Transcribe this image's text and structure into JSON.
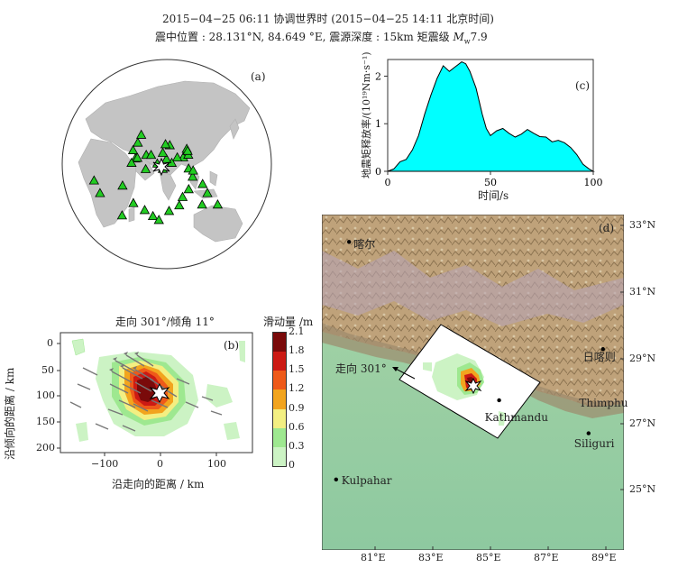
{
  "header": {
    "line1": "2015−04−25 06:11   协调世界时     (2015−04−25 14:11   北京时间)",
    "line2_prefix": "震中位置 : 28.131°N, 84.649 °E,     震源深度 : 15km   矩震级 ",
    "magnitude_symbol": "M",
    "magnitude_sub": "w",
    "magnitude_value": "7.9"
  },
  "panel_a": {
    "label": "(a)",
    "station_marker_color": "#22cc22",
    "epicenter_icon": "star-burst-icon",
    "stations": [
      [
        -48,
        16
      ],
      [
        -27,
        -8
      ],
      [
        -18,
        -16
      ],
      [
        -10,
        27
      ],
      [
        -31,
        42
      ],
      [
        -40,
        58
      ],
      [
        -49,
        70
      ],
      [
        -55,
        80
      ],
      [
        -41,
        97
      ],
      [
        -33,
        112
      ],
      [
        -21,
        116
      ],
      [
        -11,
        125
      ],
      [
        5,
        133
      ],
      [
        18,
        130
      ],
      [
        13,
        136
      ],
      [
        -9,
        146
      ],
      [
        -22,
        153
      ],
      [
        -35,
        148
      ],
      [
        -37,
        174
      ],
      [
        36,
        128
      ],
      [
        36,
        139
      ],
      [
        44,
        143
      ],
      [
        39,
        117
      ],
      [
        33,
        104
      ],
      [
        40,
        95
      ],
      [
        33,
        77
      ],
      [
        25,
        87
      ],
      [
        43,
        52
      ],
      [
        32,
        35
      ],
      [
        52,
        20
      ],
      [
        62,
        8
      ],
      [
        40,
        23
      ],
      [
        22,
        58
      ],
      [
        34,
        38
      ],
      [
        45,
        62
      ],
      [
        50,
        88
      ],
      [
        60,
        110
      ],
      [
        63,
        98
      ],
      [
        41,
        142
      ],
      [
        24,
        32
      ]
    ]
  },
  "panel_b": {
    "title": "走向 301°/倾角 11°",
    "label": "(b)",
    "xlabel": "沿走向的距离 / km",
    "ylabel": "沿倾向的距离 / km",
    "xticks": [
      "−100",
      "0",
      "100"
    ],
    "yticks": [
      "0",
      "50",
      "100",
      "150",
      "200"
    ],
    "colorbar_title": "滑动量 /m",
    "colorbar_ticks": [
      "2.1",
      "1.8",
      "1.5",
      "1.2",
      "0.9",
      "0.6",
      "0.3",
      "0"
    ],
    "colorbar_colors": [
      "#7a0a0a",
      "#cc1a14",
      "#ee5a1a",
      "#f2a41e",
      "#f3ef82",
      "#9ee890",
      "#ccf3c4"
    ]
  },
  "panel_c": {
    "label": "(c)",
    "xlabel": "时间/s",
    "ylabel": "地震矩释放率/(10¹⁹Nm·s⁻¹)",
    "fill_color": "#00ffff",
    "xlim": [
      0,
      100
    ],
    "ylim": [
      0,
      2.35
    ],
    "xticks": [
      "0",
      "50",
      "100"
    ],
    "yticks": [
      "0",
      "1",
      "2"
    ]
  },
  "panel_d": {
    "label": "(d)",
    "strike_label": "走向  301°",
    "cities": [
      {
        "name": "喀尔",
        "lon": 80.1,
        "lat": 32.5
      },
      {
        "name": "日喀则",
        "lon": 88.9,
        "lat": 29.25
      },
      {
        "name": "Kathmandu",
        "lon": 85.3,
        "lat": 27.7
      },
      {
        "name": "Thimphu",
        "lon": 89.7,
        "lat": 27.47
      },
      {
        "name": "Siliguri",
        "lon": 88.4,
        "lat": 26.7
      },
      {
        "name": "Kulpahar",
        "lon": 79.65,
        "lat": 25.3
      }
    ],
    "lon_ticks": [
      "81°E",
      "83°E",
      "85°E",
      "87°E",
      "89°E"
    ],
    "lat_ticks": [
      "33°N",
      "31°N",
      "29°N",
      "27°N",
      "25°N"
    ]
  }
}
